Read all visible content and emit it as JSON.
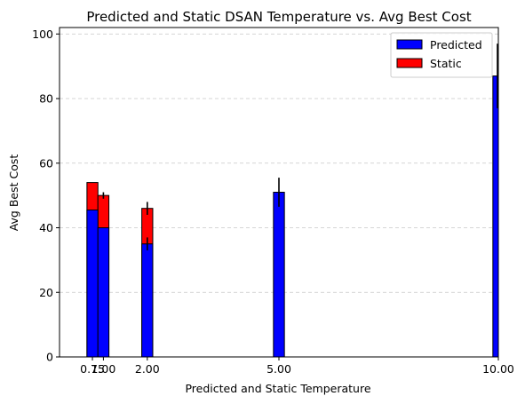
{
  "chart_data": {
    "type": "bar",
    "title": "Predicted and Static DSAN Temperature vs. Avg Best Cost",
    "xlabel": "Predicted and Static Temperature",
    "ylabel": "Avg Best Cost",
    "xlim": [
      0.0,
      10.0
    ],
    "ylim": [
      0,
      102
    ],
    "xticks": [
      0.75,
      1.0,
      2.0,
      5.0,
      10.0
    ],
    "xtick_labels": [
      "0.75",
      "1.00",
      "2.00",
      "5.00",
      "10.00"
    ],
    "yticks": [
      0,
      20,
      40,
      60,
      80,
      100
    ],
    "ytick_labels": [
      "0",
      "20",
      "40",
      "60",
      "80",
      "100"
    ],
    "grid": "y-dashed",
    "legend_position": "top-right",
    "series": [
      {
        "name": "Predicted",
        "color": "#0000ff",
        "x": [
          0.75,
          1.0,
          2.0,
          5.0,
          10.0
        ],
        "values": [
          45.5,
          40,
          35,
          51,
          87
        ],
        "errors": [
          0,
          0,
          2,
          4.5,
          10
        ]
      },
      {
        "name": "Static",
        "color": "#ff0000",
        "x": [
          0.75,
          1.0,
          2.0
        ],
        "values": [
          54,
          50,
          46
        ],
        "errors": [
          0,
          1,
          2
        ]
      }
    ],
    "bar_width": 0.25
  }
}
